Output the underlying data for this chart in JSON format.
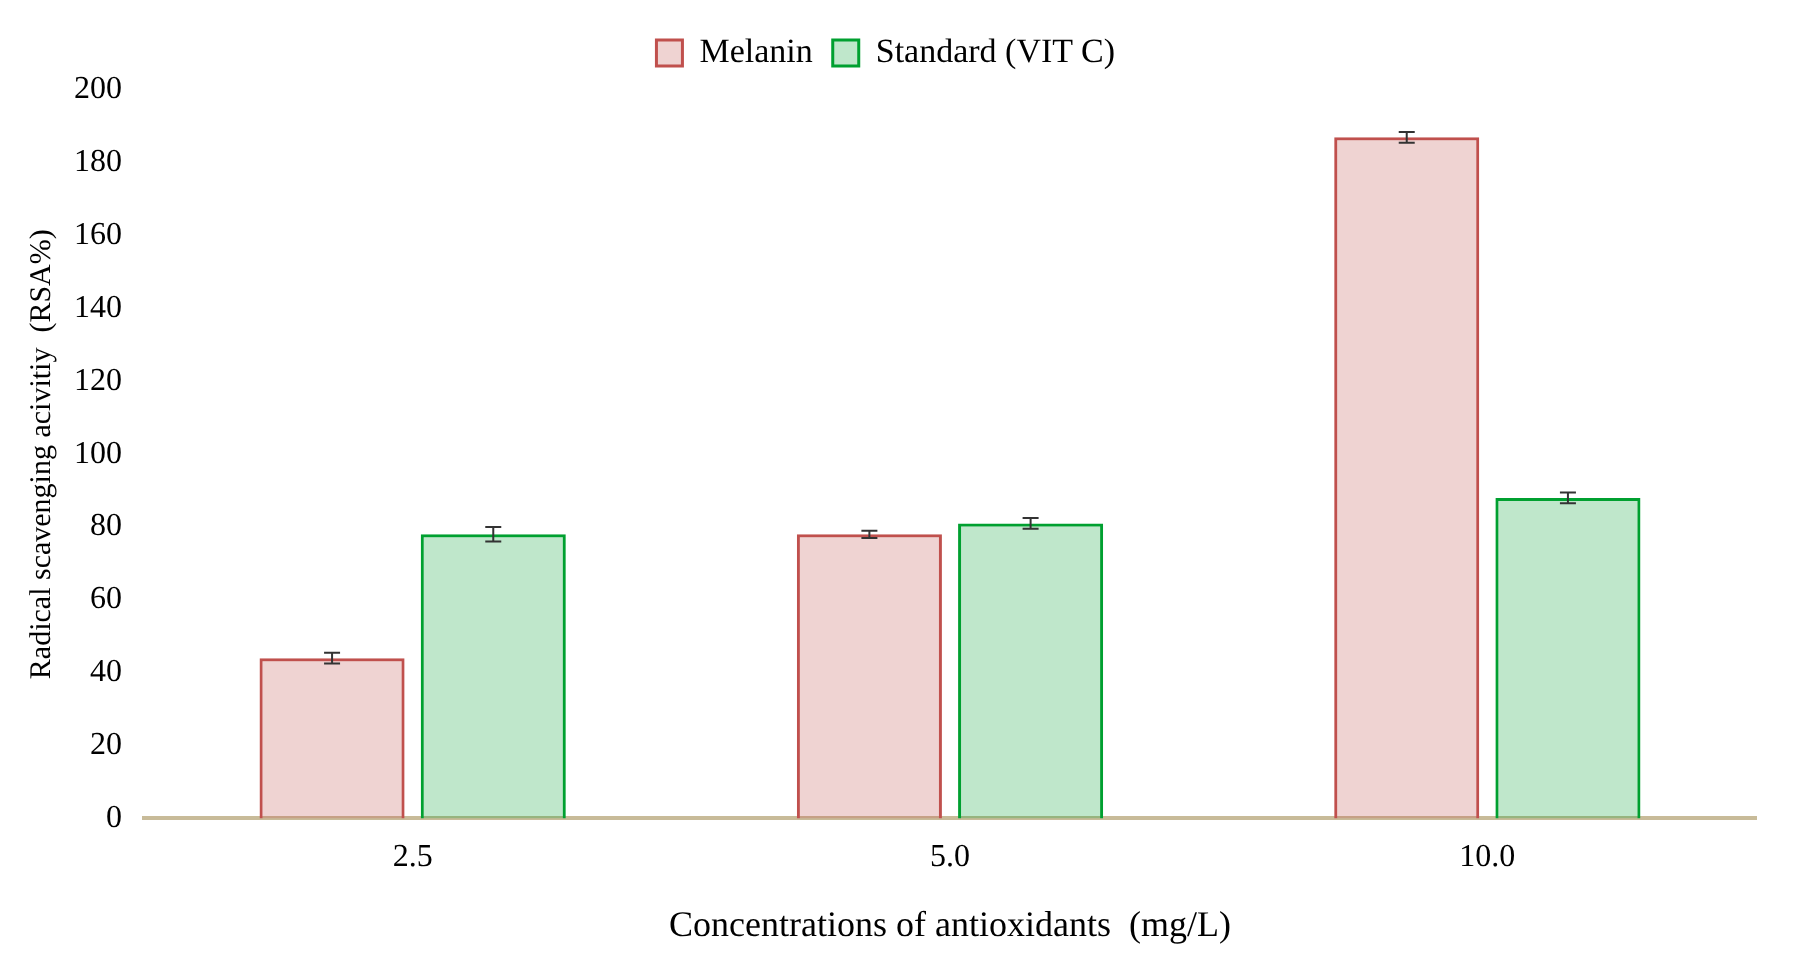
{
  "chart_data": {
    "type": "bar",
    "xlabel": "Concentrations of antioxidants  (mg/L)",
    "ylabel": "Radical scavenging acivitiy  (RSA%)",
    "categories": [
      "2.5",
      "5.0",
      "10.0"
    ],
    "series": [
      {
        "name": "Melanin",
        "color": "#c0504d",
        "values": [
          44,
          78,
          187
        ],
        "errors": [
          1.5,
          1,
          1.5
        ]
      },
      {
        "name": "Standard (VIT C)",
        "color": "#00a030",
        "values": [
          78,
          81,
          88
        ],
        "errors": [
          2,
          1.5,
          1.5
        ]
      }
    ],
    "ylim": [
      0,
      200
    ],
    "yticks": [
      0,
      20,
      40,
      60,
      80,
      100,
      120,
      140,
      160,
      180,
      200
    ],
    "grid": false,
    "legend": "top"
  }
}
